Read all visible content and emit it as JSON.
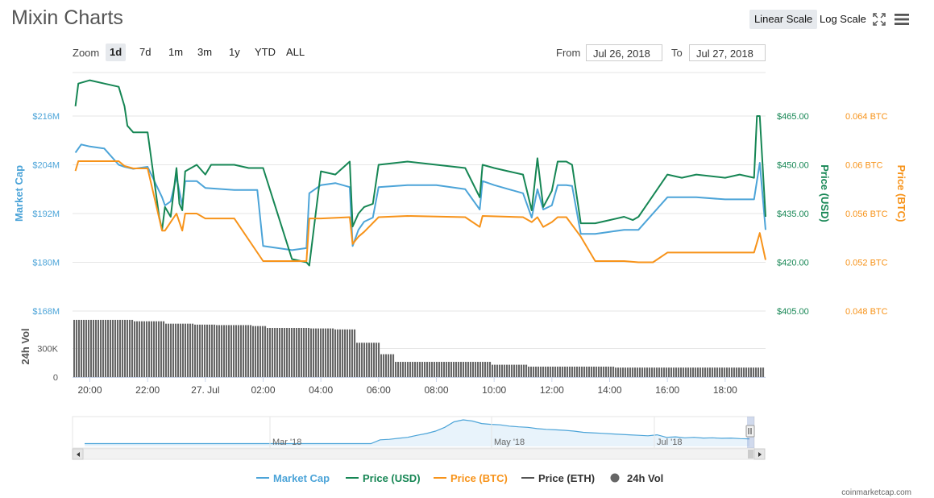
{
  "title": "Mixin Charts",
  "scale_buttons": {
    "linear": "Linear Scale",
    "log": "Log Scale",
    "active": "linear"
  },
  "icons": {
    "fullscreen": "fullscreen-icon",
    "menu": "hamburger-menu-icon"
  },
  "zoom": {
    "label": "Zoom",
    "options": [
      "1d",
      "7d",
      "1m",
      "3m",
      "1y",
      "YTD",
      "ALL"
    ],
    "active": "1d"
  },
  "date_range": {
    "from_label": "From",
    "from": "Jul 26, 2018",
    "to_label": "To",
    "to": "Jul 27, 2018"
  },
  "footer": "coinmarketcap.com",
  "colors": {
    "market_cap": "#4ca4d8",
    "price_usd": "#168654",
    "price_btc": "#f7931a",
    "price_eth": "#555555",
    "volume": "#666666"
  },
  "chart_data": {
    "type": "line",
    "x_tick_labels": [
      "20:00",
      "22:00",
      "27. Jul",
      "02:00",
      "04:00",
      "06:00",
      "08:00",
      "10:00",
      "12:00",
      "14:00",
      "16:00",
      "18:00"
    ],
    "x_range_hours": [
      19.4,
      43.4
    ],
    "axes": {
      "market_cap": {
        "label": "Market Cap",
        "ticks": [
          "$168M",
          "$180M",
          "$192M",
          "$204M",
          "$216M"
        ],
        "range": [
          168,
          216
        ],
        "unit": "M USD"
      },
      "price_usd": {
        "label": "Price (USD)",
        "ticks": [
          "$405.00",
          "$420.00",
          "$435.00",
          "$450.00",
          "$465.00"
        ],
        "range": [
          405,
          465
        ]
      },
      "price_btc": {
        "label": "Price (BTC)",
        "ticks": [
          "0.048 BTC",
          "0.052 BTC",
          "0.056 BTC",
          "0.06 BTC",
          "0.064 BTC"
        ],
        "range": [
          0.048,
          0.064
        ]
      },
      "volume": {
        "label": "24h Vol",
        "ticks": [
          "0",
          "300K"
        ],
        "range": [
          0,
          650000
        ]
      }
    },
    "series": [
      {
        "name": "Market Cap",
        "axis": "market_cap",
        "x": [
          19.5,
          19.7,
          20.0,
          20.5,
          21.0,
          21.2,
          21.5,
          22.0,
          22.5,
          22.6,
          22.8,
          23.0,
          23.2,
          23.3,
          23.7,
          24.0,
          25.0,
          25.8,
          26.0,
          27.0,
          27.5,
          27.6,
          28.0,
          28.5,
          29.0,
          29.1,
          29.3,
          29.5,
          29.8,
          30.0,
          31.0,
          32.0,
          33.0,
          33.5,
          33.6,
          34.0,
          34.5,
          35.0,
          35.3,
          35.5,
          35.7,
          36.0,
          36.2,
          36.5,
          36.7,
          37.0,
          37.5,
          38.0,
          38.5,
          39.0,
          40.0,
          40.5,
          40.8,
          41.0,
          42.0,
          42.5,
          43.0,
          43.2,
          43.4
        ],
        "values": [
          207,
          209,
          208.5,
          208,
          204,
          203.5,
          203,
          203.5,
          196,
          194,
          195,
          201,
          194,
          200,
          200,
          198.3,
          197.8,
          197.8,
          184,
          183,
          183.5,
          197,
          199,
          199.5,
          198.5,
          184,
          188,
          190,
          191,
          198.5,
          199,
          199,
          198,
          193,
          200,
          199,
          198,
          197,
          191,
          198,
          193,
          194,
          199,
          199,
          198.8,
          187,
          187,
          187.5,
          188,
          188,
          196,
          196,
          196,
          196,
          195.5,
          195.5,
          195.5,
          204.5,
          188
        ]
      },
      {
        "name": "Price (USD)",
        "axis": "price_usd",
        "x": [
          19.5,
          19.6,
          20.0,
          20.5,
          21.0,
          21.2,
          21.3,
          21.5,
          22.0,
          22.4,
          22.5,
          22.6,
          22.8,
          23.0,
          23.1,
          23.2,
          23.3,
          23.7,
          24.0,
          24.2,
          25.0,
          25.5,
          26.0,
          27.0,
          27.5,
          27.6,
          28.0,
          28.5,
          29.0,
          29.1,
          29.3,
          29.5,
          29.8,
          30.0,
          31.0,
          32.0,
          33.0,
          33.5,
          33.6,
          34.0,
          34.5,
          35.0,
          35.3,
          35.5,
          35.7,
          36.0,
          36.2,
          36.5,
          36.7,
          37.0,
          37.5,
          38.0,
          38.5,
          38.8,
          39.0,
          40.0,
          40.5,
          41.0,
          42.0,
          42.5,
          43.0,
          43.1,
          43.2,
          43.4
        ],
        "values": [
          468,
          475,
          476,
          475,
          474,
          468,
          462,
          460,
          460,
          434,
          430,
          437,
          434,
          449,
          438,
          436,
          448,
          450,
          447,
          450,
          450,
          449,
          449,
          421,
          420,
          419,
          448,
          447,
          451,
          431,
          435,
          437,
          438,
          450,
          451,
          450,
          449,
          440,
          450,
          449,
          448,
          447,
          436,
          452,
          437,
          442,
          451,
          451,
          450,
          432,
          432,
          433,
          434,
          433,
          434,
          447,
          446,
          447,
          446,
          447,
          446,
          465,
          465,
          434
        ]
      },
      {
        "name": "Price (BTC)",
        "axis": "price_btc",
        "x": [
          19.5,
          19.6,
          20.0,
          21.0,
          21.2,
          21.5,
          22.0,
          22.5,
          22.6,
          22.8,
          23.0,
          23.2,
          23.3,
          23.7,
          24.0,
          25.0,
          26.0,
          27.5,
          27.6,
          28.0,
          29.0,
          29.1,
          29.3,
          29.5,
          30.0,
          31.0,
          33.0,
          33.5,
          33.6,
          35.0,
          35.3,
          35.5,
          35.7,
          36.0,
          36.2,
          36.5,
          37.0,
          37.5,
          38.5,
          39.0,
          39.5,
          40.0,
          40.5,
          41.0,
          43.0,
          43.2,
          43.4
        ],
        "values": [
          0.0595,
          0.0603,
          0.0603,
          0.0603,
          0.0599,
          0.0597,
          0.0597,
          0.0546,
          0.0546,
          0.0553,
          0.056,
          0.0546,
          0.056,
          0.056,
          0.0556,
          0.0556,
          0.0521,
          0.0521,
          0.0556,
          0.0556,
          0.0557,
          0.0535,
          0.0541,
          0.0545,
          0.0557,
          0.0558,
          0.0557,
          0.0549,
          0.0558,
          0.0557,
          0.0553,
          0.0557,
          0.0549,
          0.0553,
          0.0557,
          0.0557,
          0.0541,
          0.0521,
          0.0521,
          0.052,
          0.052,
          0.0528,
          0.0528,
          0.0528,
          0.0528,
          0.0544,
          0.0522
        ]
      }
    ],
    "volume": {
      "x": [
        19.4,
        21.4,
        21.5,
        22.5,
        22.6,
        23.5,
        23.6,
        24.2,
        24.3,
        25.5,
        25.6,
        26.0,
        26.1,
        27.5,
        27.6,
        28.3,
        28.4,
        29.1,
        29.2,
        29.9,
        30.0,
        30.4,
        30.5,
        33.8,
        33.9,
        35.0,
        35.1,
        38.0,
        38.1,
        43.4
      ],
      "values": [
        600000,
        600000,
        585000,
        585000,
        560000,
        560000,
        550000,
        550000,
        545000,
        545000,
        535000,
        535000,
        515000,
        515000,
        510000,
        510000,
        500000,
        500000,
        360000,
        360000,
        240000,
        240000,
        160000,
        160000,
        130000,
        130000,
        110000,
        110000,
        100000,
        100000
      ]
    },
    "navigator": {
      "tick_labels": [
        "Mar '18",
        "May '18",
        "Jul '18"
      ],
      "values": [
        0.05,
        0.05,
        0.05,
        0.05,
        0.05,
        0.05,
        0.05,
        0.05,
        0.05,
        0.05,
        0.05,
        0.05,
        0.05,
        0.05,
        0.05,
        0.05,
        0.05,
        0.05,
        0.05,
        0.05,
        0.05,
        0.05,
        0.05,
        0.05,
        0.05,
        0.05,
        0.05,
        0.05,
        0.05,
        0.05,
        0.05,
        0.05,
        0.2,
        0.22,
        0.26,
        0.3,
        0.38,
        0.45,
        0.55,
        0.7,
        0.92,
        1.0,
        0.95,
        0.85,
        0.82,
        0.8,
        0.75,
        0.72,
        0.7,
        0.65,
        0.62,
        0.6,
        0.58,
        0.55,
        0.5,
        0.48,
        0.46,
        0.44,
        0.42,
        0.4,
        0.38,
        0.36,
        0.4,
        0.3,
        0.32,
        0.28,
        0.3,
        0.27,
        0.28,
        0.26,
        0.27,
        0.25,
        0.24
      ]
    },
    "legend": [
      "Market Cap",
      "Price (USD)",
      "Price (BTC)",
      "Price (ETH)",
      "24h Vol"
    ]
  }
}
